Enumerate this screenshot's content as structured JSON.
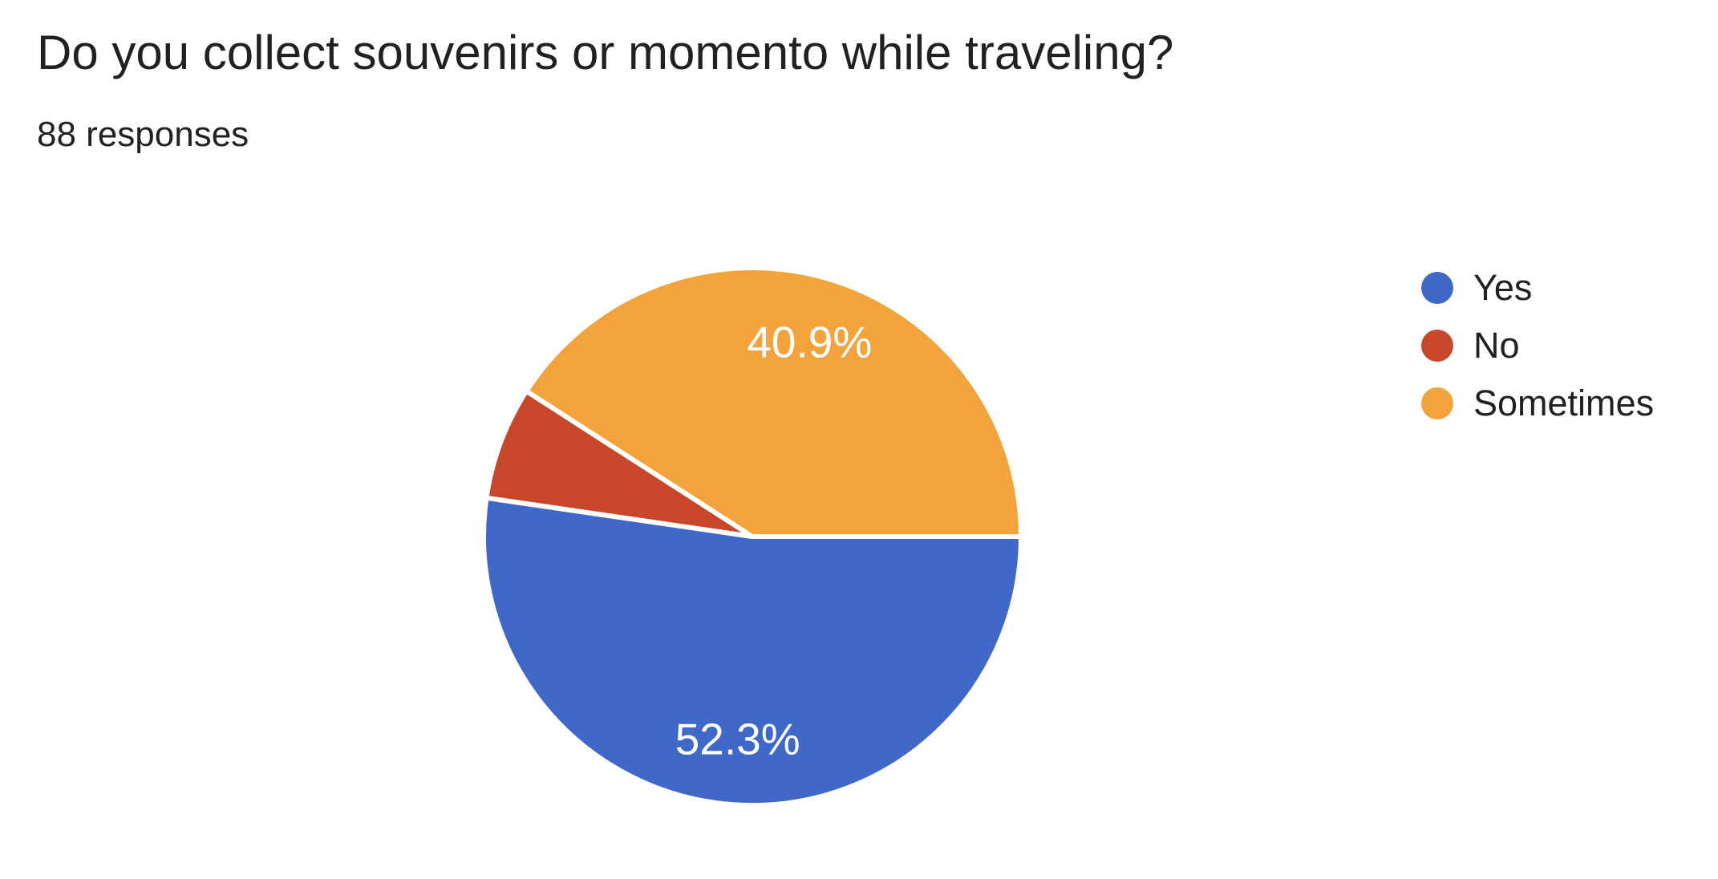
{
  "chart_data": {
    "type": "pie",
    "title": "Do you collect souvenirs or momento while traveling?",
    "subtitle": "88 responses",
    "total_responses": 88,
    "start_angle_deg": 0,
    "direction": "clockwise",
    "legend_position": "right",
    "background_color": "#ffffff",
    "text_color": "#202124",
    "slice_label_color": "#ffffff",
    "slices": [
      {
        "label": "Yes",
        "percent": 52.3,
        "color": "#4069C7",
        "data_label": "52.3%"
      },
      {
        "label": "No",
        "percent": 6.8,
        "color": "#C8472A",
        "data_label": ""
      },
      {
        "label": "Sometimes",
        "percent": 40.9,
        "color": "#F2A33C",
        "data_label": "40.9%"
      }
    ]
  }
}
